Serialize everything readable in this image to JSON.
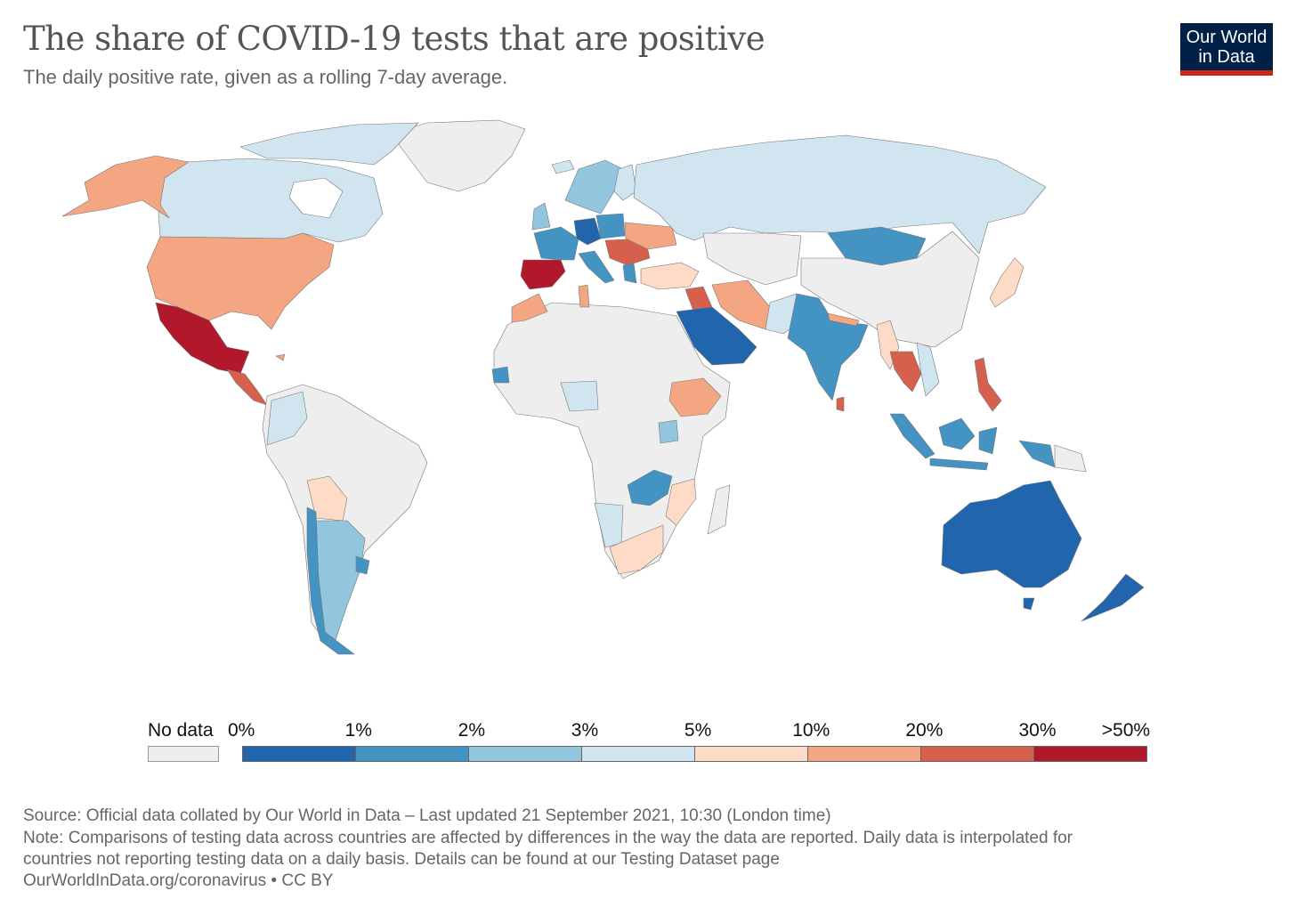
{
  "header": {
    "title": "The share of COVID-19 tests that are positive",
    "subtitle": "The daily positive rate, given as a rolling 7-day average."
  },
  "logo": {
    "line1": "Our World",
    "line2": "in Data",
    "bg": "#002147",
    "accent": "#ce261e"
  },
  "legend": {
    "no_data_label": "No data",
    "no_data_color": "#eeeeee",
    "ticks": [
      "0%",
      "1%",
      "2%",
      "3%",
      "5%",
      "10%",
      "20%",
      "30%",
      ">50%"
    ],
    "bins": [
      {
        "range": "0-1%",
        "color": "#2166ac"
      },
      {
        "range": "1-2%",
        "color": "#4393c3"
      },
      {
        "range": "2-3%",
        "color": "#92c5de"
      },
      {
        "range": "3-5%",
        "color": "#d1e5f0"
      },
      {
        "range": "5-10%",
        "color": "#fddbc7"
      },
      {
        "range": "10-20%",
        "color": "#f4a582"
      },
      {
        "range": "20-30%",
        "color": "#d6604d"
      },
      {
        "range": ">30%",
        "color": "#b2182b"
      }
    ]
  },
  "footer": {
    "source": "Source: Official data collated by Our World in Data – Last updated 21 September 2021, 10:30 (London time)",
    "note1": "Note: Comparisons of testing data across countries are affected by differences in the way the data are reported. Daily data is interpolated for",
    "note2": "countries not reporting testing data on a daily basis. Details can be found at our Testing Dataset page",
    "credit": "OurWorldInData.org/coronavirus • CC BY"
  },
  "chart_data": {
    "type": "choropleth",
    "title": "The share of COVID-19 tests that are positive",
    "date": "21 September 2021"
  }
}
